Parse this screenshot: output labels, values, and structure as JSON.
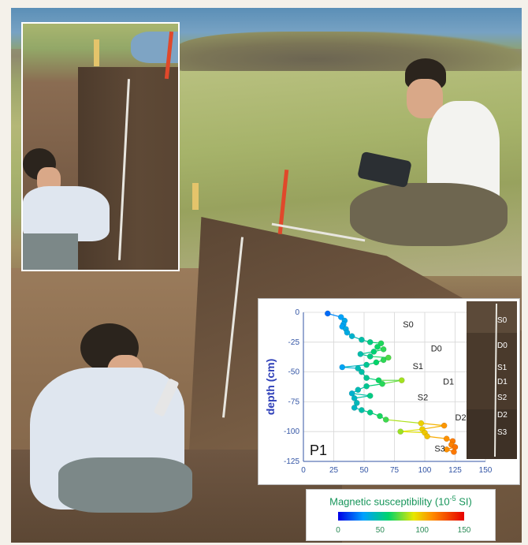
{
  "chart_data": {
    "type": "scatter",
    "title": "",
    "profile_label": "P1",
    "xlabel": "",
    "ylabel": "depth (cm)",
    "xlim": [
      0,
      150
    ],
    "ylim": [
      -125,
      0
    ],
    "x_ticks": [
      0,
      25,
      50,
      75,
      100,
      125,
      150
    ],
    "y_ticks": [
      0,
      -25,
      -50,
      -75,
      -100,
      -125
    ],
    "grid": true,
    "points": [
      {
        "x": 20,
        "y": -1
      },
      {
        "x": 31,
        "y": -4
      },
      {
        "x": 34,
        "y": -7
      },
      {
        "x": 33,
        "y": -10
      },
      {
        "x": 32,
        "y": -12
      },
      {
        "x": 35,
        "y": -14
      },
      {
        "x": 36,
        "y": -17
      },
      {
        "x": 40,
        "y": -20
      },
      {
        "x": 48,
        "y": -23
      },
      {
        "x": 55,
        "y": -25
      },
      {
        "x": 64,
        "y": -26
      },
      {
        "x": 61,
        "y": -29
      },
      {
        "x": 66,
        "y": -31
      },
      {
        "x": 58,
        "y": -33
      },
      {
        "x": 47,
        "y": -35
      },
      {
        "x": 55,
        "y": -37
      },
      {
        "x": 70,
        "y": -38
      },
      {
        "x": 66,
        "y": -40
      },
      {
        "x": 60,
        "y": -42
      },
      {
        "x": 52,
        "y": -44
      },
      {
        "x": 32,
        "y": -46
      },
      {
        "x": 45,
        "y": -47
      },
      {
        "x": 48,
        "y": -50
      },
      {
        "x": 52,
        "y": -55
      },
      {
        "x": 62,
        "y": -57
      },
      {
        "x": 81,
        "y": -57
      },
      {
        "x": 65,
        "y": -60
      },
      {
        "x": 52,
        "y": -62
      },
      {
        "x": 45,
        "y": -65
      },
      {
        "x": 40,
        "y": -68
      },
      {
        "x": 55,
        "y": -70
      },
      {
        "x": 42,
        "y": -72
      },
      {
        "x": 44,
        "y": -76
      },
      {
        "x": 42,
        "y": -80
      },
      {
        "x": 48,
        "y": -82
      },
      {
        "x": 55,
        "y": -84
      },
      {
        "x": 63,
        "y": -87
      },
      {
        "x": 68,
        "y": -90
      },
      {
        "x": 97,
        "y": -93
      },
      {
        "x": 116,
        "y": -95
      },
      {
        "x": 98,
        "y": -98
      },
      {
        "x": 80,
        "y": -100
      },
      {
        "x": 100,
        "y": -101
      },
      {
        "x": 102,
        "y": -104
      },
      {
        "x": 118,
        "y": -106
      },
      {
        "x": 123,
        "y": -108
      },
      {
        "x": 122,
        "y": -111
      },
      {
        "x": 125,
        "y": -113
      },
      {
        "x": 118,
        "y": -115
      },
      {
        "x": 124,
        "y": -117
      }
    ],
    "zones": [
      {
        "label": "S0",
        "x": 82,
        "y": -10
      },
      {
        "label": "D0",
        "x": 105,
        "y": -30
      },
      {
        "label": "S1",
        "x": 90,
        "y": -45
      },
      {
        "label": "D1",
        "x": 115,
        "y": -58
      },
      {
        "label": "S2",
        "x": 94,
        "y": -71
      },
      {
        "label": "D2",
        "x": 125,
        "y": -88
      },
      {
        "label": "S3",
        "x": 108,
        "y": -114
      }
    ],
    "color_scale": {
      "title": "Magnetic susceptibility",
      "unit": "(10",
      "unit_exp": "-5",
      "unit_tail": " SI)",
      "ticks": [
        0,
        50,
        100,
        150
      ],
      "range": [
        0,
        150
      ],
      "colors": [
        "#0000e6",
        "#00a0ff",
        "#00d46a",
        "#e7e700",
        "#ff8a00",
        "#e60000"
      ]
    },
    "strip_labels": [
      "S0",
      "D0",
      "S1",
      "D1",
      "S2",
      "D2",
      "S3"
    ]
  }
}
